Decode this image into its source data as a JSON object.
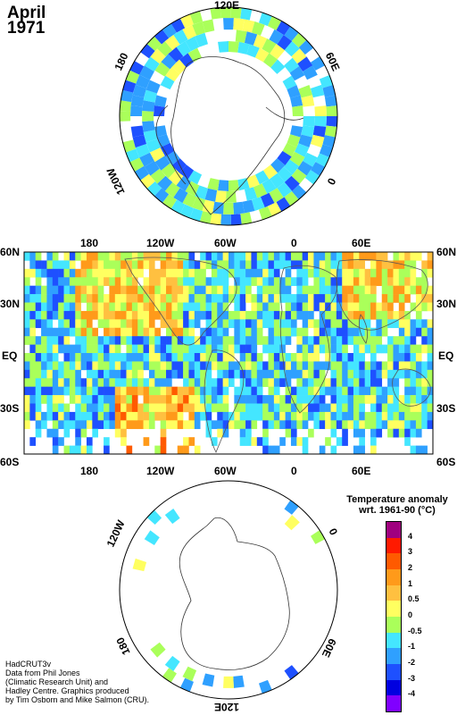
{
  "header": {
    "month": "April",
    "year": "1971"
  },
  "north_polar_labels": {
    "top": "120E",
    "right": "60E",
    "right_bottom": "0",
    "left": "180",
    "left_bottom": "120W"
  },
  "world_map": {
    "top_lon": [
      "180",
      "120W",
      "60W",
      "0",
      "60E"
    ],
    "bottom_lon": [
      "180",
      "120W",
      "60W",
      "0",
      "60E"
    ],
    "left_lat": [
      "60N",
      "30N",
      "EQ",
      "30S",
      "60S"
    ],
    "right_lat": [
      "60N",
      "30N",
      "EQ",
      "30S",
      "60S"
    ]
  },
  "south_polar_labels": {
    "left": "120W",
    "right": "0",
    "right_bottom": "60E",
    "left_bottom": "180",
    "bottom": "120E"
  },
  "legend": {
    "title_line1": "Temperature anomaly",
    "title_line2": "wrt. 1961-90  (°C)",
    "ticks": [
      "4",
      "3",
      "2",
      "1",
      "0.5",
      "0",
      "-0.5",
      "-1",
      "-2",
      "-3",
      "-4"
    ],
    "colors": [
      "#a0007f",
      "#ff1a00",
      "#ff5a00",
      "#ff9a1a",
      "#ffc040",
      "#ffff60",
      "#aaff5a",
      "#44e6ff",
      "#2fa0ff",
      "#1e50ff",
      "#0000e0",
      "#8000ff"
    ]
  },
  "credits": {
    "line1": "HadCRUT3v",
    "line2": "Data from Phil Jones",
    "line3": "(Climatic Research Unit) and",
    "line4": "Hadley Centre.  Graphics produced",
    "line5": "by Tim Osborn and Mike Salmon (CRU)."
  }
}
